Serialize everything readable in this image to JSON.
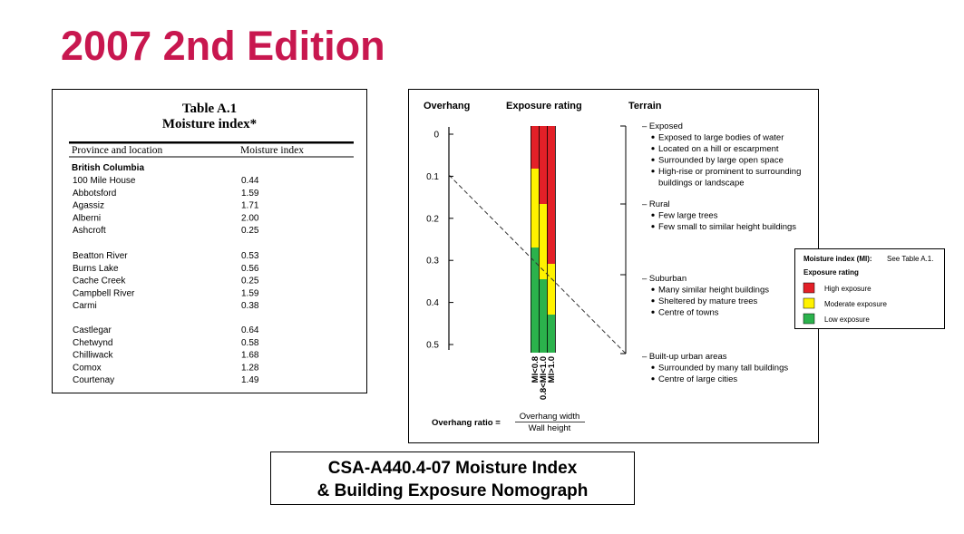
{
  "header": {
    "title": "2007 2nd Edition"
  },
  "table": {
    "title": "Table A.1",
    "subtitle": "Moisture index*",
    "columns": [
      "Province and location",
      "Moisture index"
    ],
    "province": "British Columbia",
    "groups": [
      [
        [
          "100 Mile House",
          "0.44"
        ],
        [
          "Abbotsford",
          "1.59"
        ],
        [
          "Agassiz",
          "1.71"
        ],
        [
          "Alberni",
          "2.00"
        ],
        [
          "Ashcroft",
          "0.25"
        ]
      ],
      [
        [
          "Beatton River",
          "0.53"
        ],
        [
          "Burns Lake",
          "0.56"
        ],
        [
          "Cache Creek",
          "0.25"
        ],
        [
          "Campbell River",
          "1.59"
        ],
        [
          "Carmi",
          "0.38"
        ]
      ],
      [
        [
          "Castlegar",
          "0.64"
        ],
        [
          "Chetwynd",
          "0.58"
        ],
        [
          "Chilliwack",
          "1.68"
        ],
        [
          "Comox",
          "1.28"
        ],
        [
          "Courtenay",
          "1.49"
        ]
      ]
    ]
  },
  "nomograph": {
    "headers": [
      "Overhang",
      "Exposure rating",
      "Terrain"
    ],
    "axis_labels": [
      "0",
      "0.1",
      "0.2",
      "0.3",
      "0.4",
      "0.5"
    ],
    "bar_labels": [
      "MI<0.8",
      "0.8<MI<1.0",
      "MI>1.0"
    ],
    "terrain": [
      {
        "heading": "– Exposed",
        "bullets": [
          "Exposed to large bodies of water",
          "Located on a hill or escarpment",
          "Surrounded by large open space",
          "High-rise or prominent to surrounding",
          "buildings or landscape"
        ]
      },
      {
        "heading": "– Rural",
        "bullets": [
          "Few large trees",
          "Few small to similar height buildings"
        ]
      },
      {
        "heading": "– Suburban",
        "bullets": [
          "Many similar height buildings",
          "Sheltered by mature trees",
          "Centre of towns"
        ]
      },
      {
        "heading": "– Built-up urban areas",
        "bullets": [
          "Surrounded by many tall buildings",
          "Centre of large cities"
        ]
      }
    ],
    "ratio": {
      "label": "Overhang ratio =",
      "numerator": "Overhang width",
      "denominator": "Wall height"
    },
    "legend": {
      "title_bold": "Moisture index (MI):",
      "title_note": "See Table A.1.",
      "heading": "Exposure rating",
      "items": [
        "High exposure",
        "Moderate exposure",
        "Low exposure"
      ]
    }
  },
  "caption": [
    "CSA-A440.4-07 Moisture Index",
    "& Building Exposure Nomograph"
  ]
}
